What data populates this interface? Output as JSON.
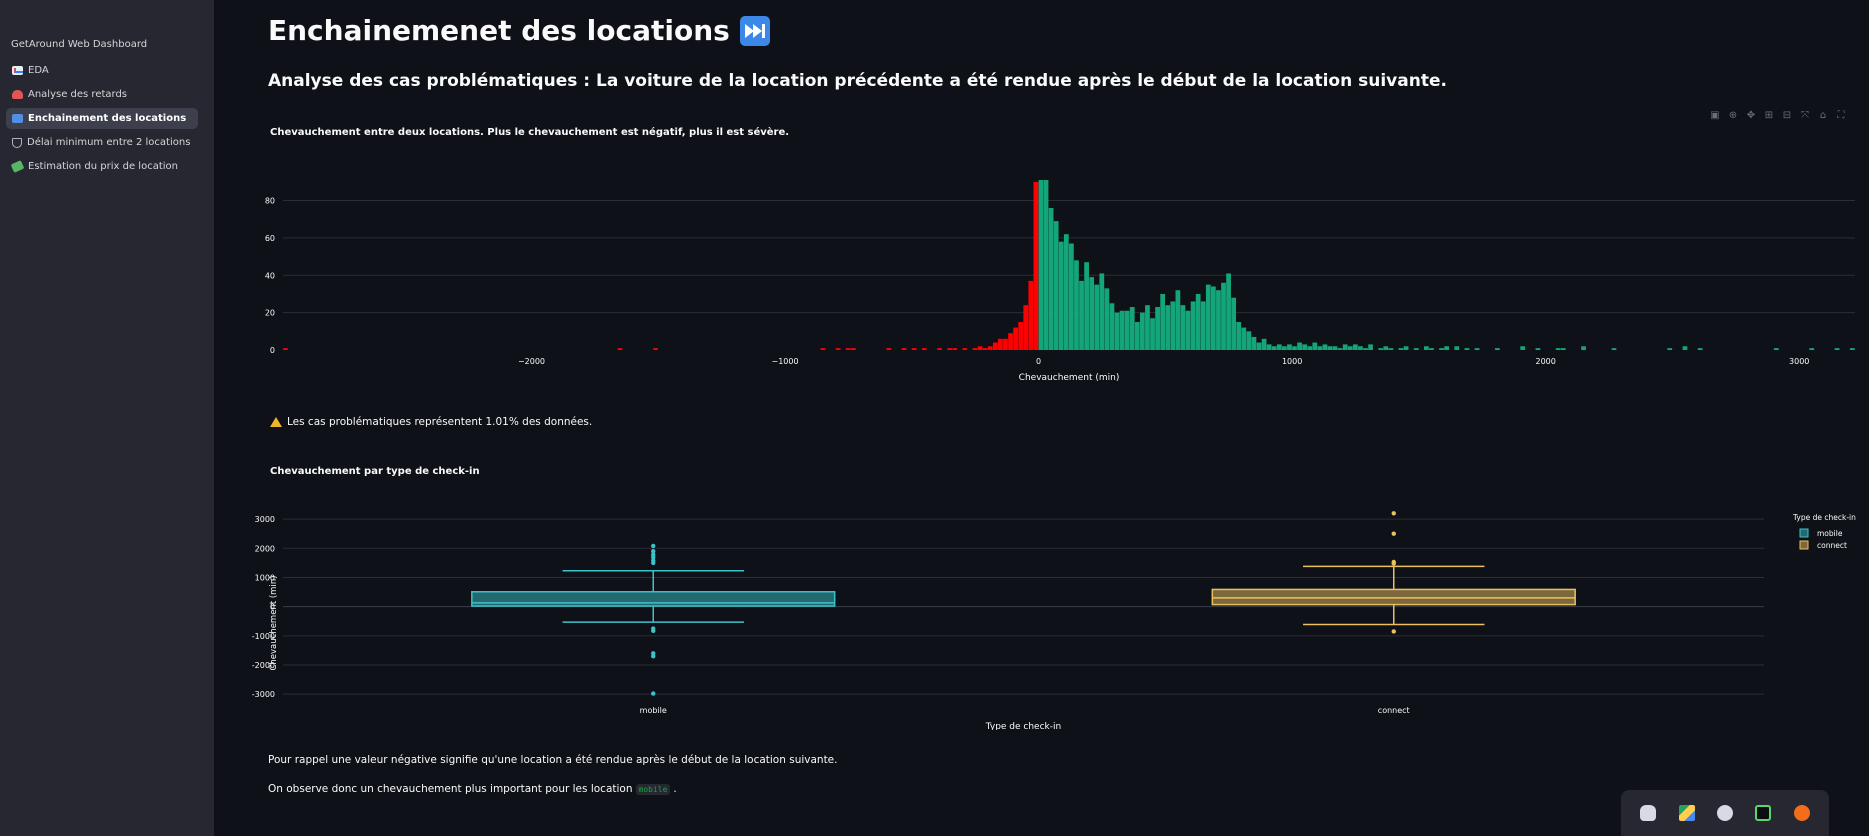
{
  "sidebar": {
    "title": "GetAround Web Dashboard",
    "items": [
      {
        "label": "EDA",
        "icon": "chart-increasing-icon"
      },
      {
        "label": "Analyse des retards",
        "icon": "rotating-light-icon"
      },
      {
        "label": "Enchainement des locations",
        "icon": "fast-forward-icon"
      },
      {
        "label": "Délai minimum entre 2 locations",
        "icon": "alembic-icon"
      },
      {
        "label": "Estimation du prix de location",
        "icon": "money-icon"
      }
    ],
    "active_index": 2
  },
  "page": {
    "title": "Enchainemenet des locations",
    "title_icon": "fast-forward-icon",
    "subtitle": "Analyse des cas problématiques : La voiture de la location précédente a été rendue après le début de la location suivante.",
    "warning": "Les cas problématiques représentent 1.01% des données.",
    "paragraph1": "Pour rappel une valeur négative signifie qu'une location a été rendue après le début de la location suivante.",
    "paragraph2_before": "On observe donc un chevauchement plus important pour les location",
    "paragraph2_code": "mobile",
    "paragraph2_after": "."
  },
  "modebar": [
    "camera-icon",
    "zoom-icon",
    "pan-icon",
    "zoom-in-icon",
    "zoom-out-icon",
    "autoscale-icon",
    "home-icon",
    "fullscreen-icon"
  ],
  "dock": [
    "discord-icon",
    "google-drive-icon",
    "hands-icon",
    "screen-icon",
    "orange-app-icon"
  ],
  "colors": {
    "negative": "#ff0000",
    "positive": "#14a57a",
    "mobile": "#3cc2c9",
    "connect": "#ecc05f",
    "background": "#0e1117",
    "sidebar": "#262730"
  },
  "chart_data": [
    {
      "type": "histogram",
      "title": "Chevauchement entre deux locations. Plus le chevauchement est négatif, plus il est sévère.",
      "xlabel": "Chevauchement (min)",
      "ylabel": "",
      "xlim": [
        -2980,
        3220
      ],
      "ylim": [
        0,
        91
      ],
      "xticks": [
        -2000,
        -1000,
        0,
        1000,
        2000,
        3000
      ],
      "xtick_labels": [
        "−2000",
        "−1000",
        "0",
        "1000",
        "2000",
        "3000"
      ],
      "yticks": [
        0,
        20,
        40,
        60,
        80
      ],
      "bin_width": 20,
      "bins": [
        [
          -2980,
          1
        ],
        [
          -1660,
          1
        ],
        [
          -1520,
          1
        ],
        [
          -860,
          1
        ],
        [
          -800,
          1
        ],
        [
          -760,
          1
        ],
        [
          -740,
          1
        ],
        [
          -600,
          1
        ],
        [
          -540,
          1
        ],
        [
          -500,
          1
        ],
        [
          -460,
          1
        ],
        [
          -400,
          1
        ],
        [
          -360,
          1
        ],
        [
          -340,
          1
        ],
        [
          -300,
          1
        ],
        [
          -260,
          1
        ],
        [
          -240,
          2
        ],
        [
          -220,
          1
        ],
        [
          -200,
          2
        ],
        [
          -180,
          4
        ],
        [
          -160,
          6
        ],
        [
          -140,
          6
        ],
        [
          -120,
          9
        ],
        [
          -100,
          12
        ],
        [
          -80,
          15
        ],
        [
          -60,
          24
        ],
        [
          -40,
          37
        ],
        [
          -20,
          90
        ],
        [
          0,
          91
        ],
        [
          20,
          91
        ],
        [
          40,
          76
        ],
        [
          60,
          69
        ],
        [
          80,
          58
        ],
        [
          100,
          62
        ],
        [
          120,
          57
        ],
        [
          140,
          48
        ],
        [
          160,
          37
        ],
        [
          180,
          47
        ],
        [
          200,
          39
        ],
        [
          220,
          35
        ],
        [
          240,
          41
        ],
        [
          260,
          33
        ],
        [
          280,
          25
        ],
        [
          300,
          20
        ],
        [
          320,
          21
        ],
        [
          340,
          21
        ],
        [
          360,
          23
        ],
        [
          380,
          15
        ],
        [
          400,
          20
        ],
        [
          420,
          24
        ],
        [
          440,
          17
        ],
        [
          460,
          23
        ],
        [
          480,
          30
        ],
        [
          500,
          24
        ],
        [
          520,
          26
        ],
        [
          540,
          32
        ],
        [
          560,
          24
        ],
        [
          580,
          21
        ],
        [
          600,
          26
        ],
        [
          620,
          30
        ],
        [
          640,
          26
        ],
        [
          660,
          35
        ],
        [
          680,
          34
        ],
        [
          700,
          32
        ],
        [
          720,
          36
        ],
        [
          740,
          41
        ],
        [
          760,
          28
        ],
        [
          780,
          15
        ],
        [
          800,
          12
        ],
        [
          820,
          10
        ],
        [
          840,
          7
        ],
        [
          860,
          4
        ],
        [
          880,
          6
        ],
        [
          900,
          3
        ],
        [
          920,
          2
        ],
        [
          940,
          3
        ],
        [
          960,
          2
        ],
        [
          980,
          3
        ],
        [
          1000,
          2
        ],
        [
          1020,
          4
        ],
        [
          1040,
          3
        ],
        [
          1060,
          2
        ],
        [
          1080,
          4
        ],
        [
          1100,
          2
        ],
        [
          1120,
          3
        ],
        [
          1140,
          2
        ],
        [
          1160,
          2
        ],
        [
          1180,
          1
        ],
        [
          1200,
          3
        ],
        [
          1220,
          2
        ],
        [
          1240,
          3
        ],
        [
          1260,
          2
        ],
        [
          1280,
          1
        ],
        [
          1300,
          3
        ],
        [
          1340,
          1
        ],
        [
          1360,
          2
        ],
        [
          1380,
          1
        ],
        [
          1420,
          1
        ],
        [
          1440,
          2
        ],
        [
          1480,
          1
        ],
        [
          1520,
          2
        ],
        [
          1540,
          1
        ],
        [
          1580,
          1
        ],
        [
          1600,
          2
        ],
        [
          1640,
          2
        ],
        [
          1680,
          1
        ],
        [
          1720,
          1
        ],
        [
          1800,
          1
        ],
        [
          1900,
          2
        ],
        [
          1960,
          1
        ],
        [
          2040,
          1
        ],
        [
          2060,
          1
        ],
        [
          2140,
          2
        ],
        [
          2260,
          1
        ],
        [
          2480,
          1
        ],
        [
          2540,
          2
        ],
        [
          2600,
          1
        ],
        [
          2900,
          1
        ],
        [
          3040,
          1
        ],
        [
          3140,
          1
        ],
        [
          3200,
          1
        ]
      ]
    },
    {
      "type": "box",
      "title": "Chevauchement par type de check-in",
      "xlabel": "Type de check-in",
      "ylabel": "Chevauchement (min)",
      "ylim": [
        -3200,
        3450
      ],
      "yticks": [
        -3000,
        -2000,
        -1000,
        0,
        1000,
        2000,
        3000
      ],
      "legend_title": "Type de check-in",
      "legend_position": "top-right",
      "categories": [
        "mobile",
        "connect"
      ],
      "series": [
        {
          "name": "mobile",
          "q1": 20,
          "median": 130,
          "q3": 510,
          "lower_fence": -530,
          "upper_fence": 1230,
          "outliers": [
            2080,
            1900,
            1780,
            1690,
            1580,
            1500,
            -750,
            -830,
            -1600,
            -1700,
            -2980
          ]
        },
        {
          "name": "connect",
          "q1": 70,
          "median": 300,
          "q3": 590,
          "lower_fence": -610,
          "upper_fence": 1380,
          "outliers": [
            3200,
            2500,
            1530,
            1480,
            -850
          ]
        }
      ]
    }
  ]
}
